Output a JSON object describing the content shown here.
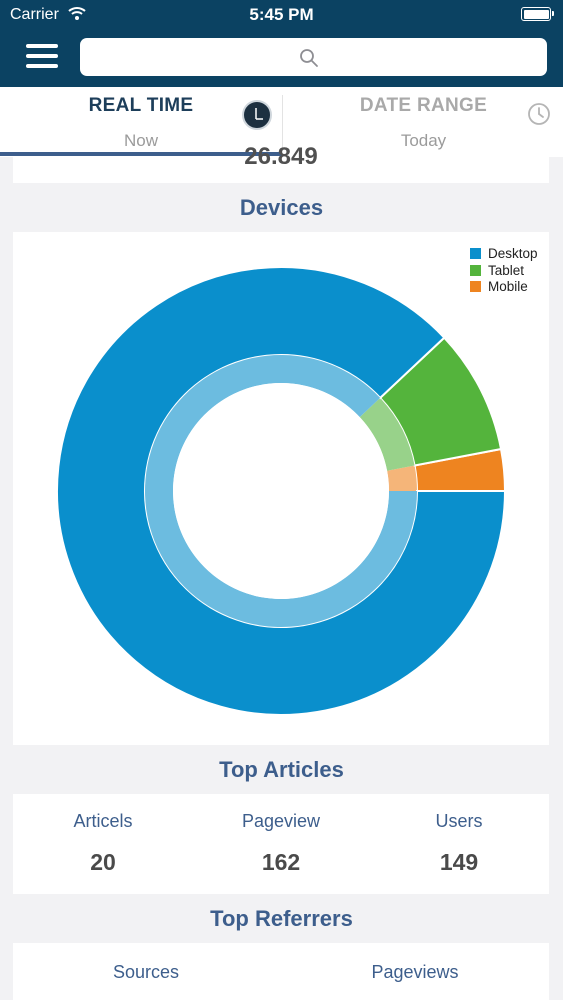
{
  "status_bar": {
    "carrier": "Carrier",
    "time": "5:45 PM"
  },
  "nav": {
    "search_placeholder": ""
  },
  "tabs": [
    {
      "title": "REAL TIME",
      "subtitle": "Now",
      "active": true
    },
    {
      "title": "DATE RANGE",
      "subtitle": "Today",
      "active": false
    }
  ],
  "previous_card": {
    "partial_value": "26.849"
  },
  "devices": {
    "title": "Devices"
  },
  "chart_data": {
    "type": "pie",
    "style": "donut",
    "title": "Devices",
    "legend_position": "top-right",
    "categories": [
      "Desktop",
      "Tablet",
      "Mobile"
    ],
    "values": [
      88,
      9,
      3
    ],
    "colors": [
      "#0a8fcc",
      "#54b43c",
      "#ee8420"
    ]
  },
  "top_articles": {
    "title": "Top Articles",
    "columns": [
      {
        "label": "Articels",
        "value": "20"
      },
      {
        "label": "Pageview",
        "value": "162"
      },
      {
        "label": "Users",
        "value": "149"
      }
    ]
  },
  "top_referrers": {
    "title": "Top Referrers",
    "columns": [
      "Sources",
      "Pageviews"
    ]
  },
  "colors": {
    "nav_bg": "#0b4262",
    "accent": "#3d5e8c",
    "page_bg": "#f2f2f4"
  }
}
